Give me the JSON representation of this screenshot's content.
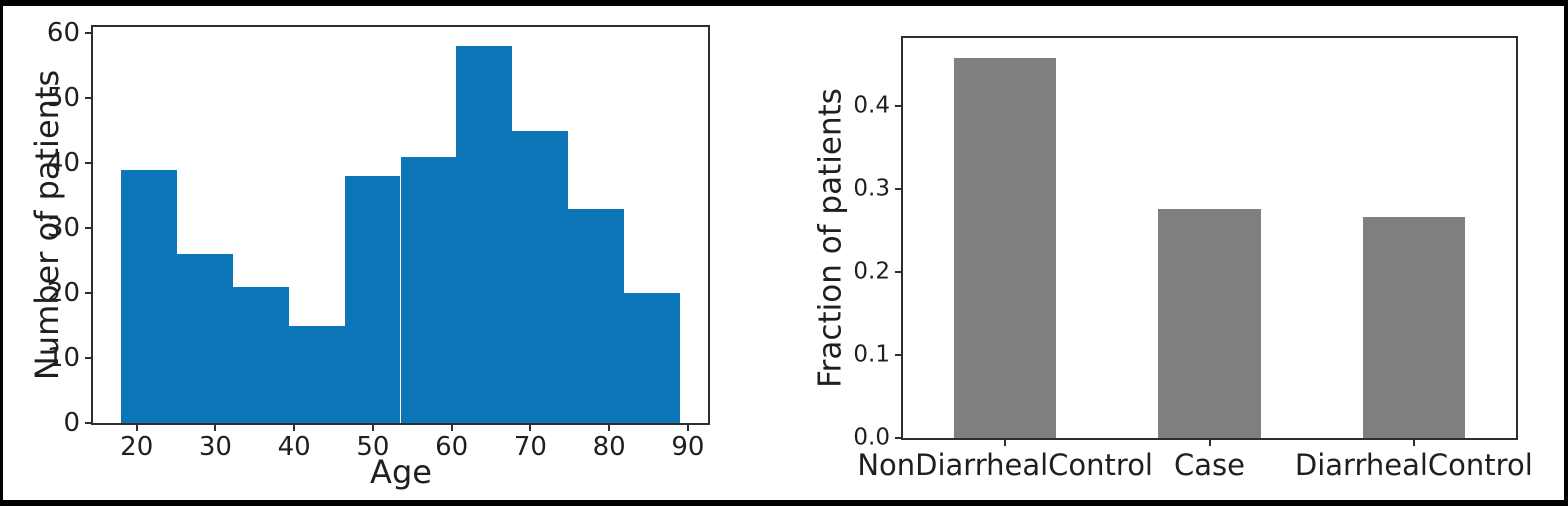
{
  "figure": {
    "background_color": "#ffffff",
    "frame_color": "#000000",
    "spine_color": "#2e2e2e"
  },
  "chart_data": [
    {
      "type": "bar",
      "subtype": "histogram",
      "xlabel": "Age",
      "ylabel": "Number of patients",
      "bar_color": "#0d76b8",
      "bins_start": 18,
      "bin_width": 7.1,
      "counts": [
        39,
        26,
        21,
        15,
        38,
        41,
        58,
        45,
        33,
        20
      ],
      "xlim": [
        14.45,
        92.55
      ],
      "ylim": [
        0,
        61
      ],
      "xticks": [
        20,
        30,
        40,
        50,
        60,
        70,
        80,
        90
      ],
      "yticks": [
        0,
        10,
        20,
        30,
        40,
        50,
        60
      ],
      "ytick_labels": [
        "0",
        "10",
        "20",
        "30",
        "40",
        "50",
        "60"
      ],
      "grid": false,
      "legend": "none"
    },
    {
      "type": "bar",
      "xlabel": "",
      "ylabel": "Fraction of patients",
      "bar_color": "#7f7f7f",
      "categories": [
        "NonDiarrhealControl",
        "Case",
        "DiarrhealControl"
      ],
      "values": [
        0.458,
        0.276,
        0.266
      ],
      "ylim": [
        0,
        0.482
      ],
      "yticks": [
        0.0,
        0.1,
        0.2,
        0.3,
        0.4
      ],
      "ytick_labels": [
        "0.0",
        "0.1",
        "0.2",
        "0.3",
        "0.4"
      ],
      "bar_slot_fraction": 0.5,
      "grid": false,
      "legend": "none"
    }
  ]
}
